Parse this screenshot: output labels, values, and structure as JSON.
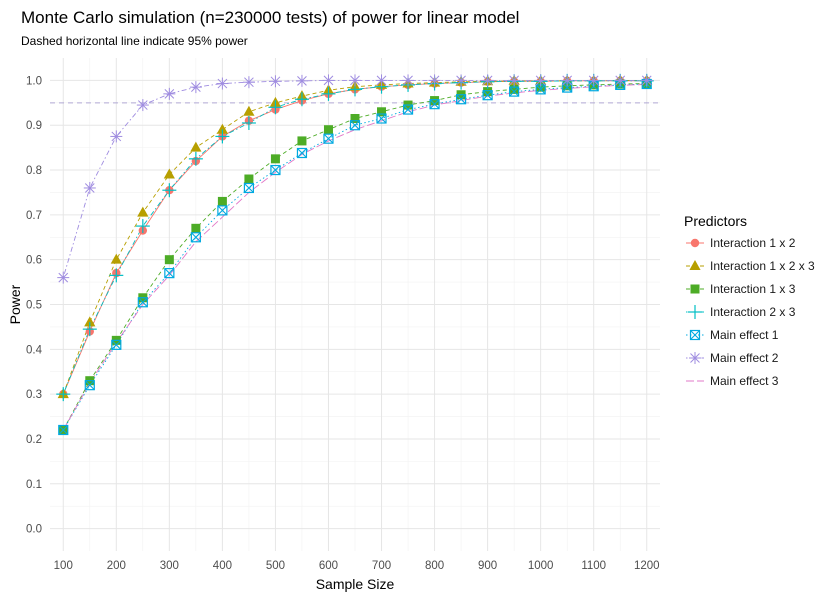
{
  "chart_data": {
    "type": "line",
    "title": "Monte Carlo simulation (n=230000 tests) of power for linear model",
    "subtitle": "Dashed horizontal line indicate 95% power",
    "xlabel": "Sample Size",
    "ylabel": "Power",
    "xlim": [
      75,
      1225
    ],
    "ylim": [
      -0.05,
      1.05
    ],
    "x_ticks": [
      100,
      200,
      300,
      400,
      500,
      600,
      700,
      800,
      900,
      1000,
      1100,
      1200
    ],
    "y_ticks": [
      0.0,
      0.1,
      0.2,
      0.3,
      0.4,
      0.5,
      0.6,
      0.7,
      0.8,
      0.9,
      1.0
    ],
    "y_tick_labels": [
      "0.0",
      "0.1",
      "0.2",
      "0.3",
      "0.4",
      "0.5",
      "0.6",
      "0.7",
      "0.8",
      "0.9",
      "1.0"
    ],
    "reference_line": {
      "y": 0.95,
      "style": "dashed",
      "color": "#b0a8d4"
    },
    "legend_title": "Predictors",
    "legend_position": "right",
    "x": [
      100,
      150,
      200,
      250,
      300,
      350,
      400,
      450,
      500,
      550,
      600,
      650,
      700,
      750,
      800,
      850,
      900,
      950,
      1000,
      1050,
      1100,
      1150,
      1200
    ],
    "series": [
      {
        "name": "Interaction 1 x 2",
        "color": "#F8766D",
        "marker": "circle",
        "dash": "solid",
        "values": [
          0.3,
          0.44,
          0.57,
          0.665,
          0.755,
          0.82,
          0.875,
          0.91,
          0.935,
          0.955,
          0.97,
          0.98,
          0.986,
          0.99,
          0.993,
          0.995,
          0.997,
          0.998,
          0.998,
          0.999,
          0.999,
          0.999,
          0.999
        ]
      },
      {
        "name": "Interaction 1 x 2 x 3",
        "color": "#B79F00",
        "marker": "triangle",
        "dash": "dashed",
        "values": [
          0.3,
          0.46,
          0.6,
          0.705,
          0.79,
          0.85,
          0.89,
          0.93,
          0.95,
          0.965,
          0.978,
          0.986,
          0.99,
          0.993,
          0.995,
          0.997,
          0.998,
          0.999,
          0.999,
          0.999,
          0.999,
          1.0,
          1.0
        ]
      },
      {
        "name": "Interaction 1 x 3",
        "color": "#4DAC26",
        "marker": "square",
        "dash": "dashed",
        "values": [
          0.22,
          0.33,
          0.42,
          0.515,
          0.6,
          0.67,
          0.73,
          0.78,
          0.825,
          0.865,
          0.89,
          0.915,
          0.93,
          0.945,
          0.955,
          0.968,
          0.975,
          0.98,
          0.985,
          0.988,
          0.99,
          0.992,
          0.993
        ]
      },
      {
        "name": "Interaction 2 x 3",
        "color": "#00BFC4",
        "marker": "plus",
        "dash": "dotdash",
        "values": [
          0.3,
          0.445,
          0.565,
          0.675,
          0.755,
          0.825,
          0.875,
          0.905,
          0.94,
          0.958,
          0.97,
          0.98,
          0.986,
          0.99,
          0.993,
          0.995,
          0.997,
          0.998,
          0.998,
          0.999,
          0.999,
          0.999,
          0.999
        ]
      },
      {
        "name": "Main effect 1",
        "color": "#00A9E0",
        "marker": "boxx",
        "dash": "dotted",
        "values": [
          0.22,
          0.32,
          0.41,
          0.505,
          0.57,
          0.65,
          0.71,
          0.76,
          0.8,
          0.838,
          0.87,
          0.9,
          0.915,
          0.935,
          0.947,
          0.958,
          0.967,
          0.975,
          0.98,
          0.984,
          0.987,
          0.99,
          0.992
        ]
      },
      {
        "name": "Main effect 2",
        "color": "#9F8CE0",
        "marker": "star",
        "dash": "dotdash",
        "values": [
          0.56,
          0.76,
          0.875,
          0.945,
          0.97,
          0.985,
          0.993,
          0.996,
          0.998,
          0.999,
          1.0,
          1.0,
          1.0,
          1.0,
          1.0,
          1.0,
          1.0,
          1.0,
          1.0,
          1.0,
          1.0,
          1.0,
          1.0
        ]
      },
      {
        "name": "Main effect 3",
        "color": "#E278C8",
        "marker": "none",
        "dash": "longdash",
        "values": [
          0.22,
          0.325,
          0.415,
          0.5,
          0.565,
          0.64,
          0.695,
          0.75,
          0.795,
          0.835,
          0.865,
          0.89,
          0.91,
          0.93,
          0.945,
          0.955,
          0.965,
          0.972,
          0.978,
          0.982,
          0.986,
          0.989,
          0.991
        ]
      }
    ]
  }
}
